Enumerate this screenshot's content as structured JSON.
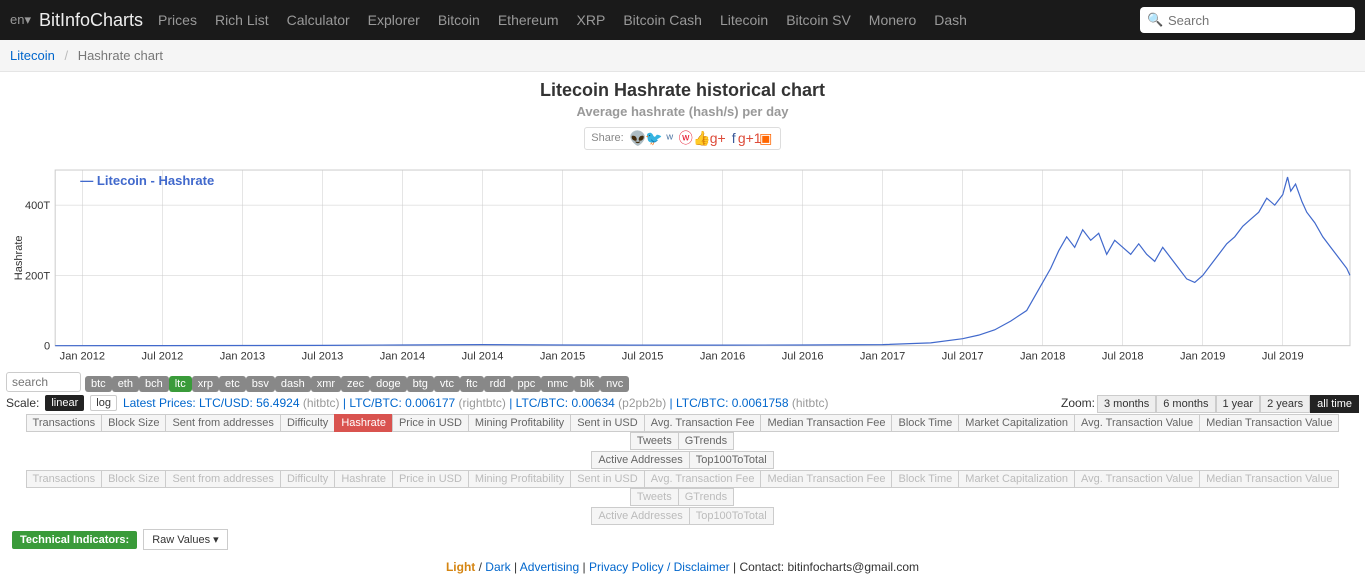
{
  "nav": {
    "lang": "en▾",
    "brand": "BitInfoCharts",
    "items": [
      "Prices",
      "Rich List",
      "Calculator",
      "Explorer",
      "Bitcoin",
      "Ethereum",
      "XRP",
      "Bitcoin Cash",
      "Litecoin",
      "Bitcoin SV",
      "Monero",
      "Dash"
    ],
    "search_placeholder": "Search"
  },
  "breadcrumb": {
    "root": "Litecoin",
    "sep": "/",
    "current": "Hashrate chart"
  },
  "title": {
    "main": "Litecoin Hashrate historical chart",
    "sub": "Average hashrate (hash/s) per day"
  },
  "share": {
    "label": "Share:",
    "icons": [
      "reddit",
      "twitter",
      "vk",
      "weibo",
      "like",
      "gplus",
      "facebook",
      "gplus1",
      "blogger"
    ],
    "glyphs": [
      "👽",
      "🐦",
      "ʷ",
      "ⓦ",
      "👍",
      "g+",
      "f",
      "g+1",
      "▣"
    ],
    "colors": [
      "#ff4500",
      "#1da1f2",
      "#4c75a3",
      "#e6162d",
      "#3b5998",
      "#dd4b39",
      "#3b5998",
      "#dd4b39",
      "#ff6600"
    ]
  },
  "chart": {
    "type": "line",
    "legend": "Litecoin - Hashrate",
    "legend_color": "#4169cc",
    "ylabel": "Hashrate",
    "ylim": [
      0,
      500
    ],
    "yticks": [
      {
        "v": 0,
        "l": "0"
      },
      {
        "v": 200,
        "l": "200T"
      },
      {
        "v": 400,
        "l": "400T"
      }
    ],
    "xlim": [
      2011.83,
      2019.92
    ],
    "xticks": [
      "Jan 2012",
      "Jul 2012",
      "Jan 2013",
      "Jul 2013",
      "Jan 2014",
      "Jul 2014",
      "Jan 2015",
      "Jul 2015",
      "Jan 2016",
      "Jul 2016",
      "Jan 2017",
      "Jul 2017",
      "Jan 2018",
      "Jul 2018",
      "Jan 2019",
      "Jul 2019"
    ],
    "line_color": "#4169cc",
    "grid_color": "#cccccc",
    "background": "#ffffff",
    "data": [
      [
        2011.83,
        0
      ],
      [
        2012.5,
        0.2
      ],
      [
        2013.0,
        0.5
      ],
      [
        2013.5,
        1
      ],
      [
        2014.0,
        2
      ],
      [
        2014.5,
        3
      ],
      [
        2015.0,
        2
      ],
      [
        2015.5,
        1.5
      ],
      [
        2016.0,
        1.5
      ],
      [
        2016.5,
        2
      ],
      [
        2017.0,
        3
      ],
      [
        2017.3,
        8
      ],
      [
        2017.5,
        20
      ],
      [
        2017.6,
        30
      ],
      [
        2017.7,
        45
      ],
      [
        2017.8,
        70
      ],
      [
        2017.9,
        100
      ],
      [
        2018.0,
        180
      ],
      [
        2018.05,
        220
      ],
      [
        2018.1,
        270
      ],
      [
        2018.15,
        310
      ],
      [
        2018.2,
        280
      ],
      [
        2018.25,
        330
      ],
      [
        2018.3,
        300
      ],
      [
        2018.35,
        320
      ],
      [
        2018.4,
        260
      ],
      [
        2018.45,
        300
      ],
      [
        2018.5,
        280
      ],
      [
        2018.55,
        260
      ],
      [
        2018.6,
        290
      ],
      [
        2018.65,
        260
      ],
      [
        2018.7,
        240
      ],
      [
        2018.75,
        280
      ],
      [
        2018.8,
        250
      ],
      [
        2018.85,
        220
      ],
      [
        2018.9,
        190
      ],
      [
        2018.95,
        180
      ],
      [
        2019.0,
        200
      ],
      [
        2019.05,
        230
      ],
      [
        2019.1,
        260
      ],
      [
        2019.15,
        290
      ],
      [
        2019.2,
        310
      ],
      [
        2019.25,
        340
      ],
      [
        2019.3,
        360
      ],
      [
        2019.35,
        380
      ],
      [
        2019.4,
        420
      ],
      [
        2019.45,
        400
      ],
      [
        2019.5,
        430
      ],
      [
        2019.53,
        480
      ],
      [
        2019.55,
        440
      ],
      [
        2019.58,
        460
      ],
      [
        2019.62,
        410
      ],
      [
        2019.65,
        380
      ],
      [
        2019.7,
        350
      ],
      [
        2019.75,
        310
      ],
      [
        2019.8,
        280
      ],
      [
        2019.85,
        250
      ],
      [
        2019.9,
        220
      ],
      [
        2019.92,
        200
      ]
    ]
  },
  "coins": {
    "search_placeholder": "search",
    "list": [
      "btc",
      "eth",
      "bch",
      "ltc",
      "xrp",
      "etc",
      "bsv",
      "dash",
      "xmr",
      "zec",
      "doge",
      "btg",
      "vtc",
      "ftc",
      "rdd",
      "ppc",
      "nmc",
      "blk",
      "nvc"
    ],
    "active": "ltc"
  },
  "scale": {
    "label": "Scale:",
    "linear": "linear",
    "log": "log"
  },
  "prices": {
    "label": "Latest Prices:",
    "items": [
      {
        "pair": "LTC/USD:",
        "val": "56.4924",
        "ex": "(hitbtc)"
      },
      {
        "pair": "LTC/BTC:",
        "val": "0.006177",
        "ex": "(rightbtc)"
      },
      {
        "pair": "LTC/BTC:",
        "val": "0.00634",
        "ex": "(p2pb2b)"
      },
      {
        "pair": "LTC/BTC:",
        "val": "0.0061758",
        "ex": "(hitbtc)"
      }
    ]
  },
  "zoom": {
    "label": "Zoom:",
    "opts": [
      "3 months",
      "6 months",
      "1 year",
      "2 years",
      "all time"
    ],
    "active": "all time"
  },
  "metrics": {
    "row1": [
      "Transactions",
      "Block Size",
      "Sent from addresses",
      "Difficulty",
      "Hashrate",
      "Price in USD",
      "Mining Profitability",
      "Sent in USD",
      "Avg. Transaction Fee",
      "Median Transaction Fee",
      "Block Time",
      "Market Capitalization",
      "Avg. Transaction Value",
      "Median Transaction Value",
      "Tweets",
      "GTrends"
    ],
    "row1b": [
      "Active Addresses",
      "Top100ToTotal"
    ],
    "active": "Hashrate"
  },
  "ti": {
    "label": "Technical Indicators:",
    "raw": "Raw Values ▾"
  },
  "footer": {
    "light": "Light",
    "dark": "Dark",
    "adv": "Advertising",
    "pp": "Privacy Policy / Disclaimer",
    "contact_label": "Contact:",
    "contact": "bitinfocharts@gmail.com"
  }
}
